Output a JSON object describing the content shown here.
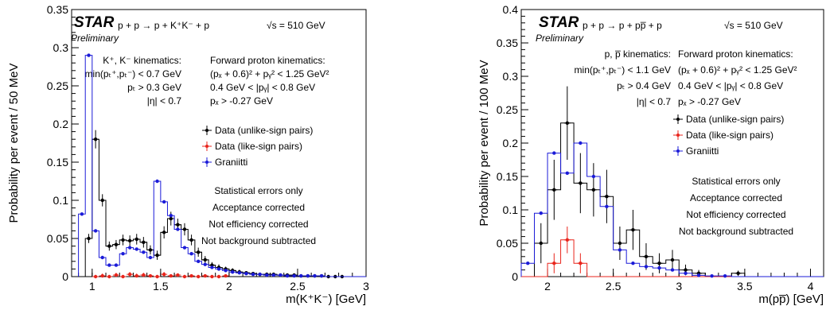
{
  "chart_data": [
    {
      "type": "histogram",
      "brand": "STAR",
      "preliminary": "Preliminary",
      "reaction": "p + p → p + K⁺K⁻ + p",
      "energy": "√s = 510 GeV",
      "ylabel": "Probability per event / 50 MeV",
      "xlabel": "m(K⁺K⁻) [GeV]",
      "xlim": [
        0.85,
        3.0
      ],
      "ylim": [
        0,
        0.35
      ],
      "xticks": [
        "1",
        "1.5",
        "2",
        "2.5",
        "3"
      ],
      "yticks": [
        "0",
        "0.05",
        "0.1",
        "0.15",
        "0.2",
        "0.25",
        "0.3",
        "0.35"
      ],
      "kin_left": [
        "K⁺, K⁻ kinematics:",
        "min(pₜ⁺,pₜ⁻) < 0.7 GeV",
        "pₜ > 0.3 GeV",
        "|η| < 0.7"
      ],
      "kin_right": [
        "Forward proton kinematics:",
        "(pₓ + 0.6)² + pᵧ² < 1.25 GeV²",
        "0.4 GeV < |pᵧ| < 0.8 GeV",
        "pₓ > -0.27 GeV"
      ],
      "legend": [
        {
          "label": "Data (unlike-sign pairs)",
          "color": "#000000"
        },
        {
          "label": "Data (like-sign pairs)",
          "color": "#e8251c"
        },
        {
          "label": "Graniitti",
          "color": "#1b1bd8"
        }
      ],
      "notes": [
        "Statistical errors only",
        "Acceptance corrected",
        "Not efficiency corrected",
        "Not background subtracted"
      ],
      "bins": [
        0.9,
        0.95,
        1.0,
        1.05,
        1.1,
        1.15,
        1.2,
        1.25,
        1.3,
        1.35,
        1.4,
        1.45,
        1.5,
        1.55,
        1.6,
        1.65,
        1.7,
        1.75,
        1.8,
        1.85,
        1.9,
        1.95,
        2.0,
        2.05,
        2.1,
        2.15,
        2.2,
        2.25,
        2.3,
        2.35,
        2.4,
        2.45,
        2.5,
        2.55,
        2.6,
        2.65,
        2.7,
        2.75,
        2.8,
        2.85,
        2.9,
        2.95,
        3.0
      ],
      "series": [
        {
          "name": "Data (unlike-sign pairs)",
          "color": "#000000",
          "hist": true,
          "values": [
            0,
            0.05,
            0.18,
            0.1,
            0.04,
            0.042,
            0.048,
            0.047,
            0.049,
            0.045,
            0.035,
            0.028,
            0.058,
            0.076,
            0.068,
            0.062,
            0.048,
            0.032,
            0.022,
            0.015,
            0.012,
            0.01,
            0.008,
            0.006,
            0.005,
            0.004,
            0.003,
            0.003,
            0.003,
            0.002,
            0.002,
            0.002,
            0.001,
            0.001,
            0.001,
            0.001,
            0.0,
            0.0,
            0.0,
            0,
            0,
            0
          ],
          "errors": [
            0,
            0.006,
            0.012,
            0.008,
            0.006,
            0.006,
            0.007,
            0.007,
            0.007,
            0.007,
            0.006,
            0.006,
            0.008,
            0.009,
            0.008,
            0.008,
            0.007,
            0.006,
            0.005,
            0.004,
            0.004,
            0.003,
            0.003,
            0.003,
            0.002,
            0.002,
            0.002,
            0.002,
            0.002,
            0.002,
            0.001,
            0.001,
            0.001,
            0.001,
            0.001,
            0.001,
            0.001,
            0.001,
            0.001,
            0,
            0,
            0
          ]
        },
        {
          "name": "Data (like-sign pairs)",
          "color": "#e8251c",
          "hist": false,
          "values": [
            0,
            0,
            0,
            0.001,
            0,
            0.002,
            0,
            0.003,
            0.001,
            0.002,
            0.001,
            0,
            0.003,
            0.001,
            0.002,
            0,
            0.001,
            0,
            0.001,
            0,
            0,
            0.001,
            0,
            0,
            0,
            0,
            0,
            0,
            0,
            0,
            0,
            0,
            0,
            0,
            0,
            0,
            0,
            0,
            0,
            0,
            0,
            0
          ],
          "errors": [
            0,
            0,
            0.002,
            0.003,
            0.002,
            0.003,
            0.002,
            0.003,
            0.003,
            0.003,
            0.002,
            0.002,
            0.003,
            0.002,
            0.002,
            0.002,
            0.002,
            0.001,
            0.001,
            0.001,
            0.001,
            0.001,
            0,
            0,
            0,
            0,
            0,
            0,
            0,
            0,
            0,
            0,
            0,
            0,
            0,
            0,
            0,
            0,
            0,
            0,
            0,
            0
          ]
        },
        {
          "name": "Graniitti",
          "color": "#1b1bd8",
          "hist": true,
          "values": [
            0.082,
            0.29,
            0.06,
            0.025,
            0.015,
            0.015,
            0.03,
            0.038,
            0.036,
            0.032,
            0.025,
            0.125,
            0.098,
            0.08,
            0.062,
            0.038,
            0.03,
            0.02,
            0.016,
            0.012,
            0.01,
            0.008,
            0.006,
            0.005,
            0.004,
            0.003,
            0.003,
            0.002,
            0.002,
            0.002,
            0.001,
            0.001,
            0.001,
            0.001,
            0.001,
            0.001,
            0.0,
            0.0,
            0.0,
            0,
            0,
            0
          ],
          "errors": []
        }
      ]
    },
    {
      "type": "histogram",
      "brand": "STAR",
      "preliminary": "Preliminary",
      "reaction": "p + p → p + pp̅ + p",
      "energy": "√s = 510 GeV",
      "ylabel": "Probability per event / 100 MeV",
      "xlabel": "m(pp̅) [GeV]",
      "xlim": [
        1.8,
        4.1
      ],
      "ylim": [
        0,
        0.4
      ],
      "xticks": [
        "2",
        "2.5",
        "3",
        "3.5",
        "4"
      ],
      "yticks": [
        "0",
        "0.05",
        "0.1",
        "0.15",
        "0.2",
        "0.25",
        "0.3",
        "0.35",
        "0.4"
      ],
      "kin_left": [
        "p, p̅ kinematics:",
        "min(pₜ⁺,pₜ⁻) < 1.1 GeV",
        "pₜ > 0.4 GeV",
        "|η| < 0.7"
      ],
      "kin_right": [
        "Forward proton kinematics:",
        "(pₓ + 0.6)² + pᵧ² < 1.25 GeV²",
        "0.4 GeV < |pᵧ| < 0.8 GeV",
        "pₓ > -0.27 GeV"
      ],
      "legend": [
        {
          "label": "Data (unlike-sign pairs)",
          "color": "#000000"
        },
        {
          "label": "Data (like-sign pairs)",
          "color": "#e8251c"
        },
        {
          "label": "Graniitti",
          "color": "#1b1bd8"
        }
      ],
      "notes": [
        "Statistical errors only",
        "Acceptance corrected",
        "Not efficiency corrected",
        "Not background subtracted"
      ],
      "bins": [
        1.8,
        1.9,
        2.0,
        2.1,
        2.2,
        2.3,
        2.4,
        2.5,
        2.6,
        2.7,
        2.8,
        2.9,
        3.0,
        3.1,
        3.2,
        3.3,
        3.4,
        3.5,
        3.6,
        3.7,
        3.8,
        3.9,
        4.0,
        4.1
      ],
      "series": [
        {
          "name": "Data (unlike-sign pairs)",
          "color": "#000000",
          "hist": true,
          "values": [
            0.0,
            0.05,
            0.13,
            0.23,
            0.14,
            0.13,
            0.12,
            0.05,
            0.07,
            0.03,
            0.02,
            0.025,
            0.01,
            0.005,
            0.0,
            0.0,
            0.005,
            0.0,
            0.0,
            0.0,
            0.0,
            0.0,
            0.0
          ],
          "errors": [
            0,
            0.03,
            0.045,
            0.055,
            0.045,
            0.04,
            0.04,
            0.025,
            0.03,
            0.02,
            0.015,
            0.015,
            0.008,
            0.005,
            0,
            0,
            0.004,
            0,
            0,
            0,
            0,
            0,
            0
          ]
        },
        {
          "name": "Data (like-sign pairs)",
          "color": "#e8251c",
          "hist": true,
          "values": [
            0,
            0,
            0.02,
            0.055,
            0.02,
            0,
            0,
            0,
            0,
            0,
            0,
            0,
            0,
            0,
            0,
            0,
            0,
            0,
            0,
            0,
            0,
            0,
            0
          ],
          "errors": [
            0,
            0,
            0.015,
            0.02,
            0.015,
            0,
            0,
            0,
            0,
            0,
            0,
            0,
            0,
            0,
            0,
            0,
            0,
            0,
            0,
            0,
            0,
            0,
            0
          ]
        },
        {
          "name": "Graniitti",
          "color": "#1b1bd8",
          "hist": true,
          "values": [
            0.02,
            0.095,
            0.185,
            0.155,
            0.2,
            0.15,
            0.105,
            0.04,
            0.02,
            0.015,
            0.013,
            0.01,
            0.005,
            0.002,
            0.001,
            0.001,
            0.0,
            0.0,
            0.0,
            0.0,
            0.0,
            0.0,
            0.0
          ],
          "errors": []
        }
      ]
    }
  ]
}
